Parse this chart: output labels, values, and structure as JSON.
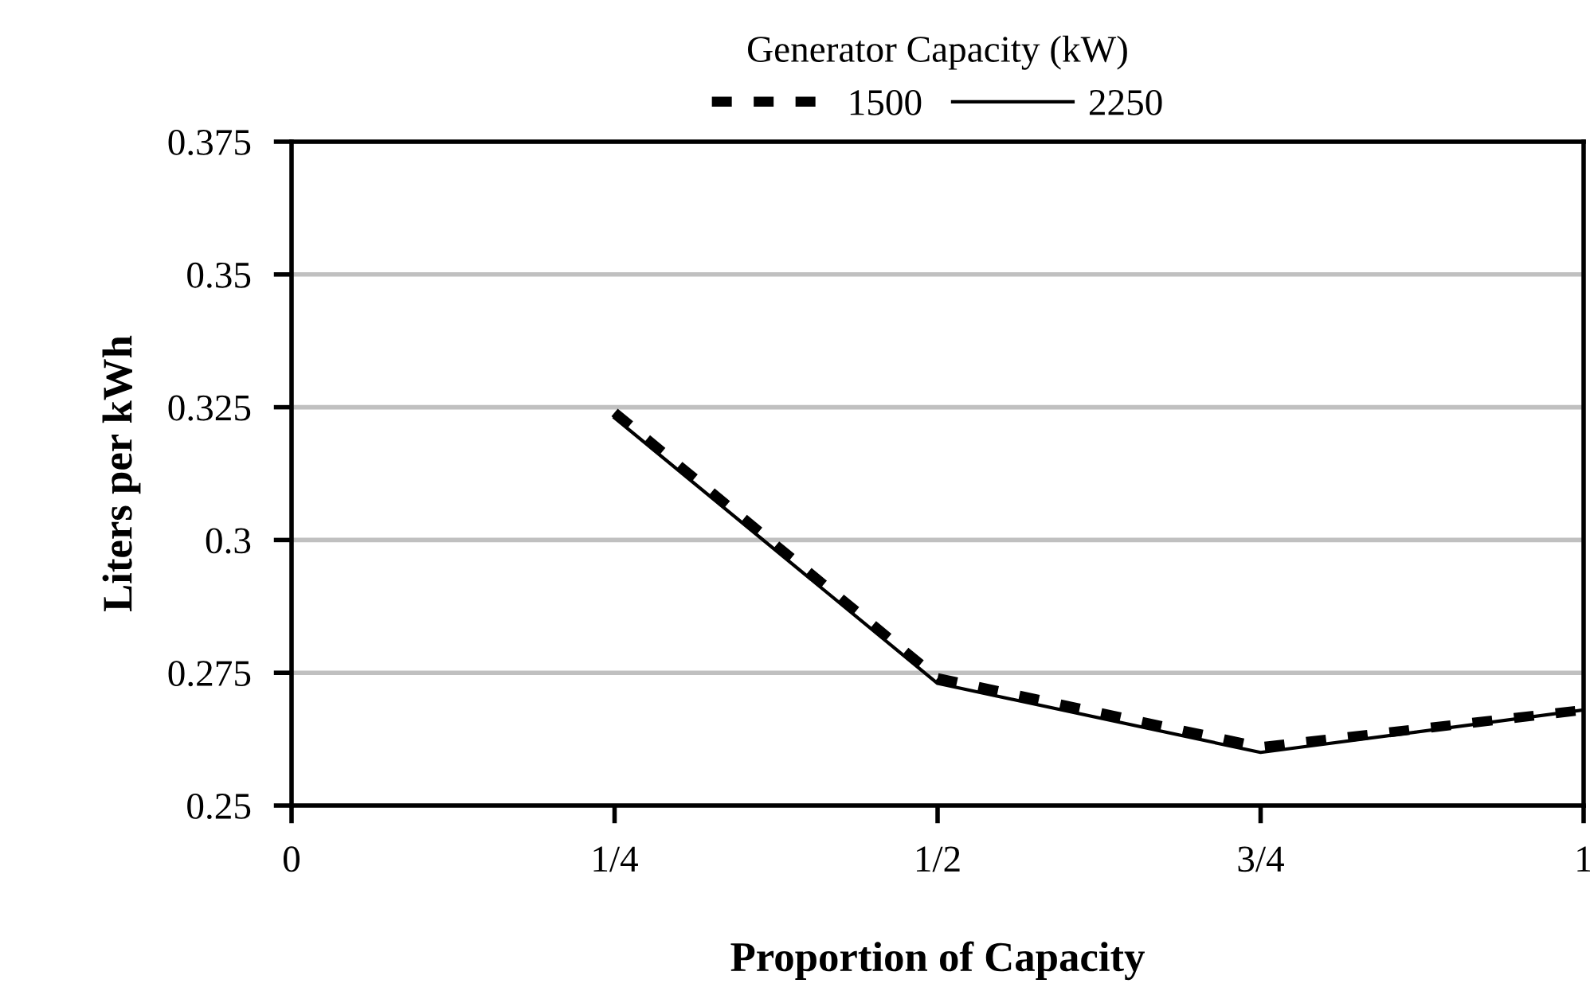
{
  "chart_data": {
    "type": "line",
    "xlabel": "Proportion of Capacity",
    "ylabel": "Liters per kWh",
    "legend_title": "Generator Capacity (kW)",
    "legend": "top",
    "x": [
      0.25,
      0.5,
      0.75,
      1
    ],
    "series": [
      {
        "name": "1500",
        "color": "#000000",
        "line_style": "dashed",
        "values": [
          0.324,
          0.274,
          0.261,
          0.268
        ]
      },
      {
        "name": "2250",
        "color": "#000000",
        "line_style": "solid",
        "values": [
          0.323,
          0.273,
          0.26,
          0.268
        ]
      }
    ],
    "xlim": [
      0,
      1
    ],
    "xticks": [
      {
        "value": 0,
        "label": "0"
      },
      {
        "value": 0.25,
        "label": "1/4"
      },
      {
        "value": 0.5,
        "label": "1/2"
      },
      {
        "value": 0.75,
        "label": "3/4"
      },
      {
        "value": 1,
        "label": "1"
      }
    ],
    "ylim": [
      0.25,
      0.375
    ],
    "yticks": [
      0.25,
      0.275,
      0.3,
      0.325,
      0.35,
      0.375
    ],
    "grid": "y"
  }
}
